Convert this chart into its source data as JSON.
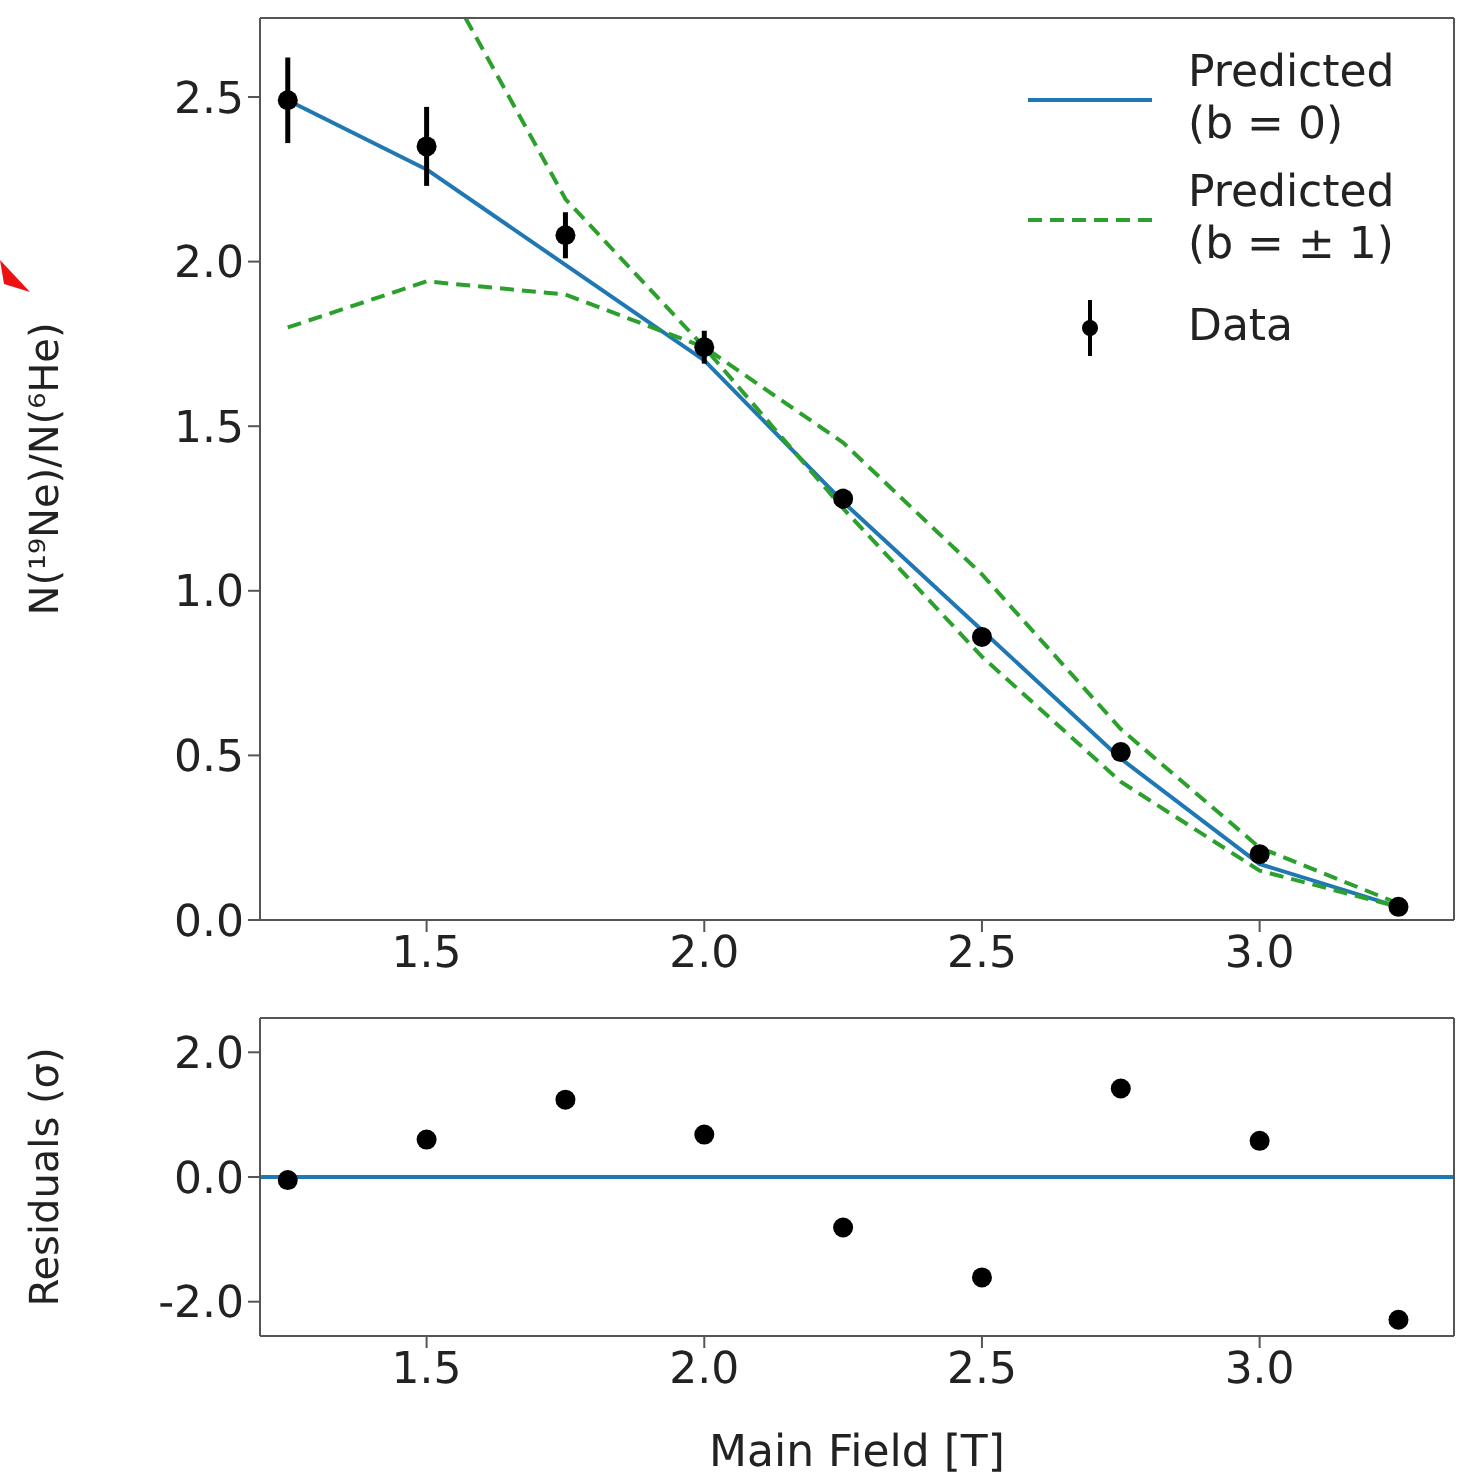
{
  "chart_data": [
    {
      "type": "line",
      "ylabel": "N(¹⁹Ne)/N(⁶He)",
      "x": [
        1.25,
        1.5,
        1.75,
        2.0,
        2.25,
        2.5,
        2.75,
        3.0,
        3.25
      ],
      "xlim": [
        1.2,
        3.35
      ],
      "ylim": [
        0,
        2.74
      ],
      "xticks": [
        {
          "value": 1.5,
          "label": "1.5"
        },
        {
          "value": 2.0,
          "label": "2.0"
        },
        {
          "value": 2.5,
          "label": "2.5"
        },
        {
          "value": 3.0,
          "label": "3.0"
        }
      ],
      "yticks": [
        {
          "value": 0,
          "label": "0.0"
        },
        {
          "value": 0.5,
          "label": "0.5"
        },
        {
          "value": 1.0,
          "label": "1.0"
        },
        {
          "value": 1.5,
          "label": "1.5"
        },
        {
          "value": 2.0,
          "label": "2.0"
        },
        {
          "value": 2.5,
          "label": "2.5"
        }
      ],
      "legend": "top right",
      "grid": false,
      "series": [
        {
          "name": "Predicted (b = 0)",
          "color": "#1f77b4",
          "line_style": "solid",
          "marker": "none",
          "values": [
            2.49,
            2.28,
            1.99,
            1.7,
            1.27,
            0.88,
            0.49,
            0.17,
            0.04
          ]
        },
        {
          "name": "Predicted (b = ± 1)",
          "color": "#2ca02c",
          "line_style": "dashed",
          "marker": "none",
          "values": [
            1.8,
            1.94,
            1.9,
            1.74,
            1.45,
            1.05,
            0.58,
            0.22,
            0.05
          ]
        },
        {
          "color": "#2ca02c",
          "line_style": "dashed",
          "marker": "none",
          "x": [
            1.57,
            1.75,
            2.0,
            2.25,
            2.5,
            2.75,
            3.0,
            3.25
          ],
          "values": [
            2.74,
            2.19,
            1.74,
            1.25,
            0.8,
            0.42,
            0.15,
            0.04
          ]
        },
        {
          "name": "Data",
          "type": "scatter",
          "color": "#000000",
          "marker": "circle",
          "values": [
            2.49,
            2.35,
            2.08,
            1.74,
            1.28,
            0.86,
            0.51,
            0.2,
            0.04
          ],
          "errors": [
            0.13,
            0.12,
            0.07,
            0.05,
            0.03,
            0.02,
            0.02,
            0.01,
            0.01
          ]
        }
      ]
    },
    {
      "type": "scatter",
      "xlabel": "Main Field [T]",
      "ylabel": "Residuals (σ)",
      "x": [
        1.25,
        1.5,
        1.75,
        2.0,
        2.25,
        2.5,
        2.75,
        3.0,
        3.25
      ],
      "xlim": [
        1.2,
        3.35
      ],
      "ylim": [
        -2.55,
        2.55
      ],
      "xticks": [
        {
          "value": 1.5,
          "label": "1.5"
        },
        {
          "value": 2.0,
          "label": "2.0"
        },
        {
          "value": 2.5,
          "label": "2.5"
        },
        {
          "value": 3.0,
          "label": "3.0"
        }
      ],
      "yticks": [
        {
          "value": -2,
          "label": "-2.0"
        },
        {
          "value": 0,
          "label": "0.0"
        },
        {
          "value": 2,
          "label": "2.0"
        }
      ],
      "grid": false,
      "legend": false,
      "marker": "circle",
      "ref_lines": [
        {
          "axis": "y",
          "value": 0,
          "color": "#1f77b4",
          "line_style": "solid"
        }
      ],
      "series": [
        {
          "color": "#000000",
          "values": [
            -0.05,
            0.6,
            1.24,
            0.68,
            -0.81,
            -1.61,
            1.42,
            0.58,
            -2.29
          ]
        }
      ]
    }
  ]
}
